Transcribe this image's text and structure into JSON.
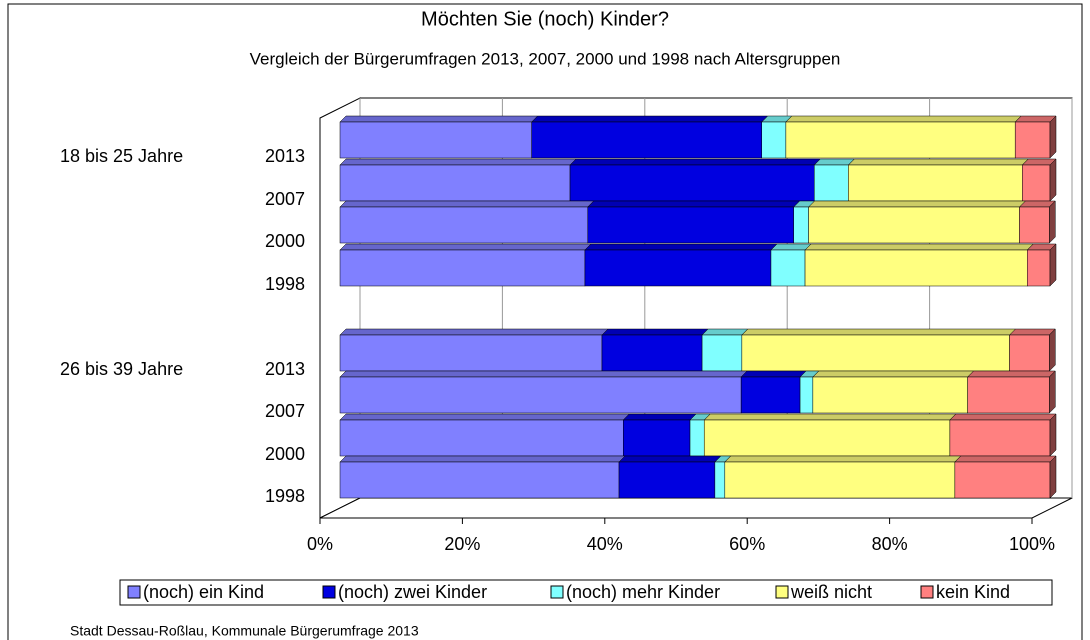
{
  "chart_data": {
    "type": "stacked-bar-3d",
    "title": "Möchten Sie (noch) Kinder?",
    "subtitle": "Vergleich der Bürgerumfragen 2013, 2007, 2000 und 1998 nach Altersgruppen",
    "groups": [
      "18 bis 25 Jahre",
      "26 bis 39 Jahre"
    ],
    "categories": [
      "2013",
      "2007",
      "2000",
      "1998",
      "2013",
      "2007",
      "2000",
      "1998"
    ],
    "series": [
      {
        "name": "(noch) ein  Kind",
        "color": "#8080ff",
        "values": [
          27.0,
          32.4,
          34.9,
          34.5,
          36.9,
          56.5,
          39.9,
          39.3
        ]
      },
      {
        "name": "(noch) zwei Kinder",
        "color": "#0000e0",
        "values": [
          32.4,
          34.4,
          29.0,
          26.2,
          14.1,
          8.3,
          9.4,
          13.5
        ]
      },
      {
        "name": "(noch) mehr Kinder",
        "color": "#80ffff",
        "values": [
          3.4,
          4.8,
          2.1,
          4.8,
          5.6,
          1.8,
          2.0,
          1.4
        ]
      },
      {
        "name": "weiß  nicht",
        "color": "#ffff80",
        "values": [
          32.3,
          24.5,
          29.7,
          31.3,
          37.7,
          21.8,
          34.6,
          32.4
        ]
      },
      {
        "name": "kein Kind",
        "color": "#ff8080",
        "values": [
          4.9,
          3.9,
          4.2,
          3.2,
          5.6,
          11.5,
          14.1,
          13.4
        ]
      }
    ],
    "xlim": [
      0,
      100
    ],
    "xticks": [
      {
        "value": 0,
        "label": "0%"
      },
      {
        "value": 20,
        "label": "20%"
      },
      {
        "value": 40,
        "label": "40%"
      },
      {
        "value": 60,
        "label": "60%"
      },
      {
        "value": 80,
        "label": "80%"
      },
      {
        "value": 100,
        "label": "100%"
      }
    ],
    "grid": true,
    "legend": "bottom",
    "source": "Stadt Dessau-Roßlau, Kommunale Bürgerumfrage 2013"
  }
}
